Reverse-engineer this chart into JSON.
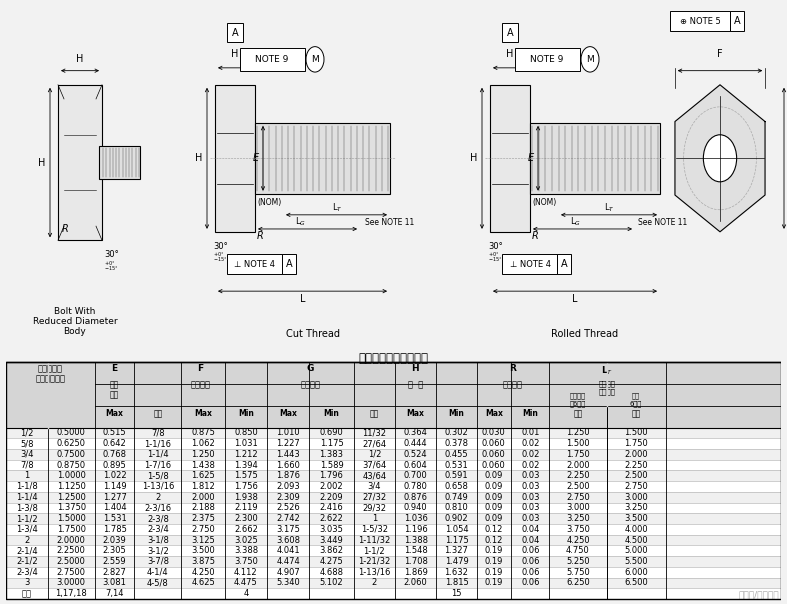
{
  "title": "重型六角头螺栓的尺寸",
  "watermark": "头条号/工品一号",
  "bg_color": "#f2f2f2",
  "rows": [
    [
      "1/2",
      "0.5000",
      "0.515",
      "7/8",
      "0.875",
      "0.850",
      "1.010",
      "0.690",
      "11/32",
      "0.364",
      "0.302",
      "0.030",
      "0.01",
      "1.250",
      "1.500"
    ],
    [
      "5/8",
      "0.6250",
      "0.642",
      "1-1/16",
      "1.062",
      "1.031",
      "1.227",
      "1.175",
      "27/64",
      "0.444",
      "0.378",
      "0.060",
      "0.02",
      "1.500",
      "1.750"
    ],
    [
      "3/4",
      "0.7500",
      "0.768",
      "1-1/4",
      "1.250",
      "1.212",
      "1.443",
      "1.383",
      "1/2",
      "0.524",
      "0.455",
      "0.060",
      "0.02",
      "1.750",
      "2.000"
    ],
    [
      "7/8",
      "0.8750",
      "0.895",
      "1-7/16",
      "1.438",
      "1.394",
      "1.660",
      "1.589",
      "37/64",
      "0.604",
      "0.531",
      "0.060",
      "0.02",
      "2.000",
      "2.250"
    ],
    [
      "1",
      "1.0000",
      "1.022",
      "1-5/8",
      "1.625",
      "1.575",
      "1.876",
      "1.796",
      "43/64",
      "0.700",
      "0.591",
      "0.09",
      "0.03",
      "2.250",
      "2.500"
    ],
    [
      "1-1/8",
      "1.1250",
      "1.149",
      "1-13/16",
      "1.812",
      "1.756",
      "2.093",
      "2.002",
      "3/4",
      "0.780",
      "0.658",
      "0.09",
      "0.03",
      "2.500",
      "2.750"
    ],
    [
      "1-1/4",
      "1.2500",
      "1.277",
      "2",
      "2.000",
      "1.938",
      "2.309",
      "2.209",
      "27/32",
      "0.876",
      "0.749",
      "0.09",
      "0.03",
      "2.750",
      "3.000"
    ],
    [
      "1-3/8",
      "1.3750",
      "1.404",
      "2-3/16",
      "2.188",
      "2.119",
      "2.526",
      "2.416",
      "29/32",
      "0.940",
      "0.810",
      "0.09",
      "0.03",
      "3.000",
      "3.250"
    ],
    [
      "1-1/2",
      "1.5000",
      "1.531",
      "2-3/8",
      "2.375",
      "2.300",
      "2.742",
      "2.622",
      "1",
      "1.036",
      "0.902",
      "0.09",
      "0.03",
      "3.250",
      "3.500"
    ],
    [
      "1-3/4",
      "1.7500",
      "1.785",
      "2-3/4",
      "2.750",
      "2.662",
      "3.175",
      "3.035",
      "1-5/32",
      "1.196",
      "1.054",
      "0.12",
      "0.04",
      "3.750",
      "4.000"
    ],
    [
      "2",
      "2.0000",
      "2.039",
      "3-1/8",
      "3.125",
      "3.025",
      "3.608",
      "3.449",
      "1-11/32",
      "1.388",
      "1.175",
      "0.12",
      "0.04",
      "4.250",
      "4.500"
    ],
    [
      "2-1/4",
      "2.2500",
      "2.305",
      "3-1/2",
      "3.500",
      "3.388",
      "4.041",
      "3.862",
      "1-1/2",
      "1.548",
      "1.327",
      "0.19",
      "0.06",
      "4.750",
      "5.000"
    ],
    [
      "2-1/2",
      "2.5000",
      "2.559",
      "3-7/8",
      "3.875",
      "3.750",
      "4.474",
      "4.275",
      "1-21/32",
      "1.708",
      "1.479",
      "0.19",
      "0.06",
      "5.250",
      "5.500"
    ],
    [
      "2-3/4",
      "2.7500",
      "2.827",
      "4-1/4",
      "4.250",
      "4.112",
      "4.907",
      "4.688",
      "1-13/16",
      "1.869",
      "1.632",
      "0.19",
      "0.06",
      "5.750",
      "6.000"
    ],
    [
      "3",
      "3.0000",
      "3.081",
      "4-5/8",
      "4.625",
      "4.475",
      "5.340",
      "5.102",
      "2",
      "2.060",
      "1.815",
      "0.19",
      "0.06",
      "6.250",
      "6.500"
    ],
    [
      "见注",
      "1,17,18",
      "7,14",
      "",
      "",
      "4",
      "",
      "",
      "",
      "",
      "15",
      "",
      "",
      "",
      ""
    ]
  ]
}
